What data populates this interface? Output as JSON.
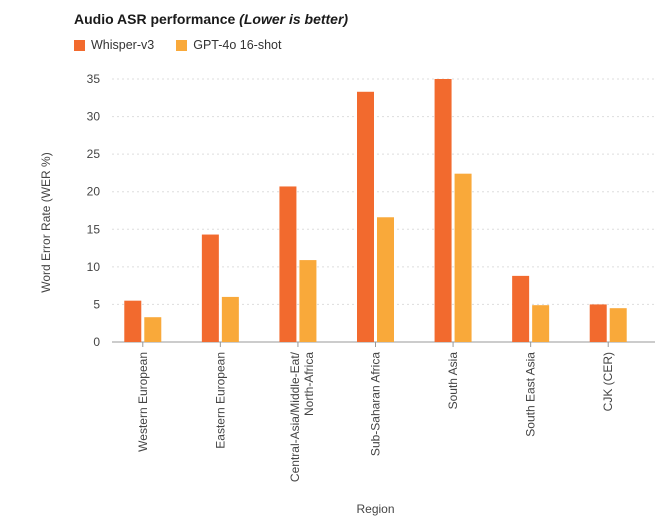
{
  "chart_data": {
    "type": "bar",
    "title": "Audio ASR performance",
    "subtitle": "(Lower is better)",
    "xlabel": "Region",
    "ylabel": "Word Error Rate (WER %)",
    "ylim": [
      0,
      35
    ],
    "yticks": [
      0,
      5,
      10,
      15,
      20,
      25,
      30,
      35
    ],
    "grid": true,
    "legend_position": "top-left",
    "categories": [
      "Western European",
      "Eastern European",
      "Central-Asia/Middle-Eat/\nNorth-Africa",
      "Sub-Saharan Africa",
      "South Asia",
      "South East Asia",
      "CJK (CER)"
    ],
    "series": [
      {
        "name": "Whisper-v3",
        "color": "#f26a2e",
        "values": [
          5.5,
          14.3,
          20.7,
          33.3,
          35.0,
          8.8,
          5.0
        ]
      },
      {
        "name": "GPT-4o 16-shot",
        "color": "#f9a93a",
        "values": [
          3.3,
          6.0,
          10.9,
          16.6,
          22.4,
          4.9,
          4.5
        ]
      }
    ]
  }
}
